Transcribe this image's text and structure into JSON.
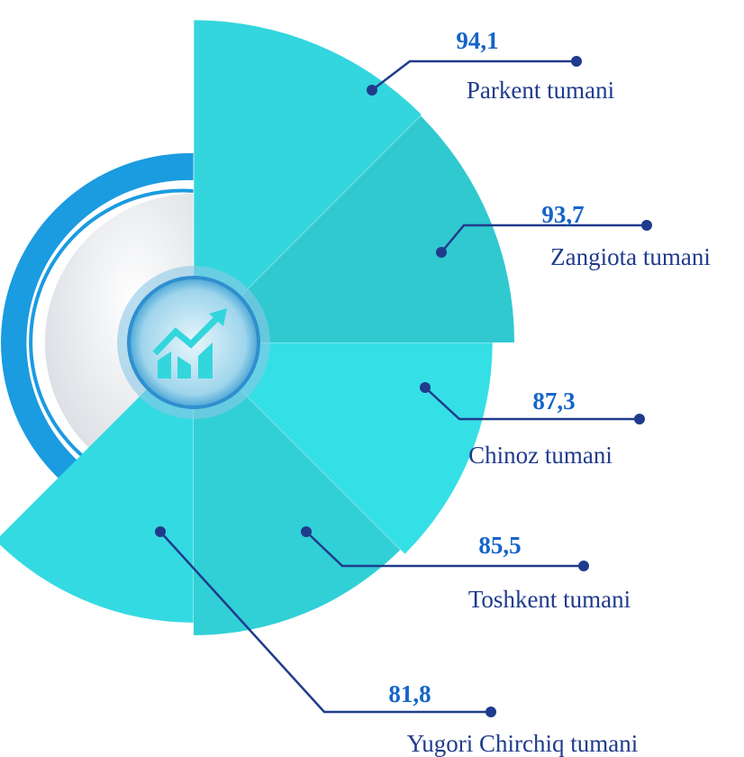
{
  "chart_data": {
    "type": "radial-bar",
    "categories": [
      "Parkent tumani",
      "Zangiota tumani",
      "Chinoz tumani",
      "Toshkent tumani",
      "Yugori Chirchiq tumani"
    ],
    "values": [
      94.1,
      93.7,
      87.3,
      85.5,
      81.8
    ],
    "value_labels": [
      "94,1",
      "93,7",
      "87,3",
      "85,5",
      "81,8"
    ],
    "color": "#33d6dd"
  }
}
